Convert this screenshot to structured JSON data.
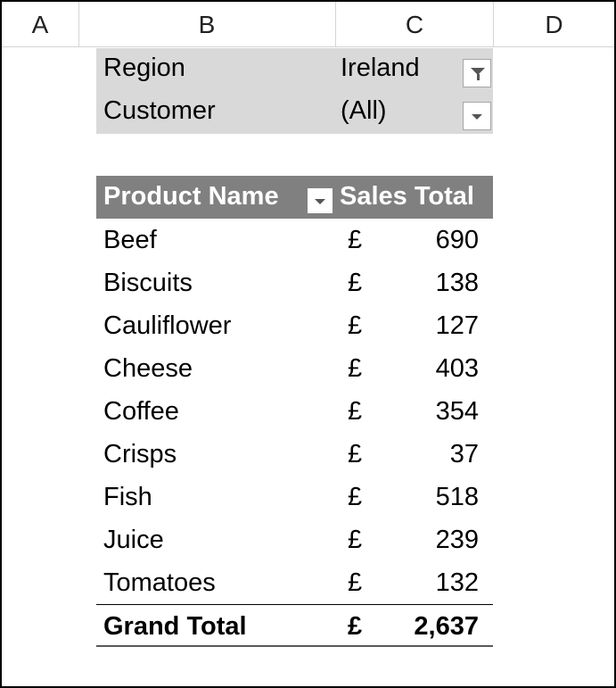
{
  "columns": [
    "A",
    "B",
    "C",
    "D"
  ],
  "filters": [
    {
      "label": "Region",
      "value": "Ireland",
      "filtered": true
    },
    {
      "label": "Customer",
      "value": "(All)",
      "filtered": false
    }
  ],
  "table": {
    "header": {
      "product": "Product Name",
      "sales": "Sales Total"
    },
    "rows": [
      {
        "name": "Beef",
        "currency": "£",
        "amount": "690"
      },
      {
        "name": "Biscuits",
        "currency": "£",
        "amount": "138"
      },
      {
        "name": "Cauliflower",
        "currency": "£",
        "amount": "127"
      },
      {
        "name": "Cheese",
        "currency": "£",
        "amount": "403"
      },
      {
        "name": "Coffee",
        "currency": "£",
        "amount": "354"
      },
      {
        "name": "Crisps",
        "currency": "£",
        "amount": "37"
      },
      {
        "name": "Fish",
        "currency": "£",
        "amount": "518"
      },
      {
        "name": "Juice",
        "currency": "£",
        "amount": "239"
      },
      {
        "name": "Tomatoes",
        "currency": "£",
        "amount": "132"
      }
    ],
    "total": {
      "name": "Grand Total",
      "currency": "£",
      "amount": "2,637"
    }
  }
}
